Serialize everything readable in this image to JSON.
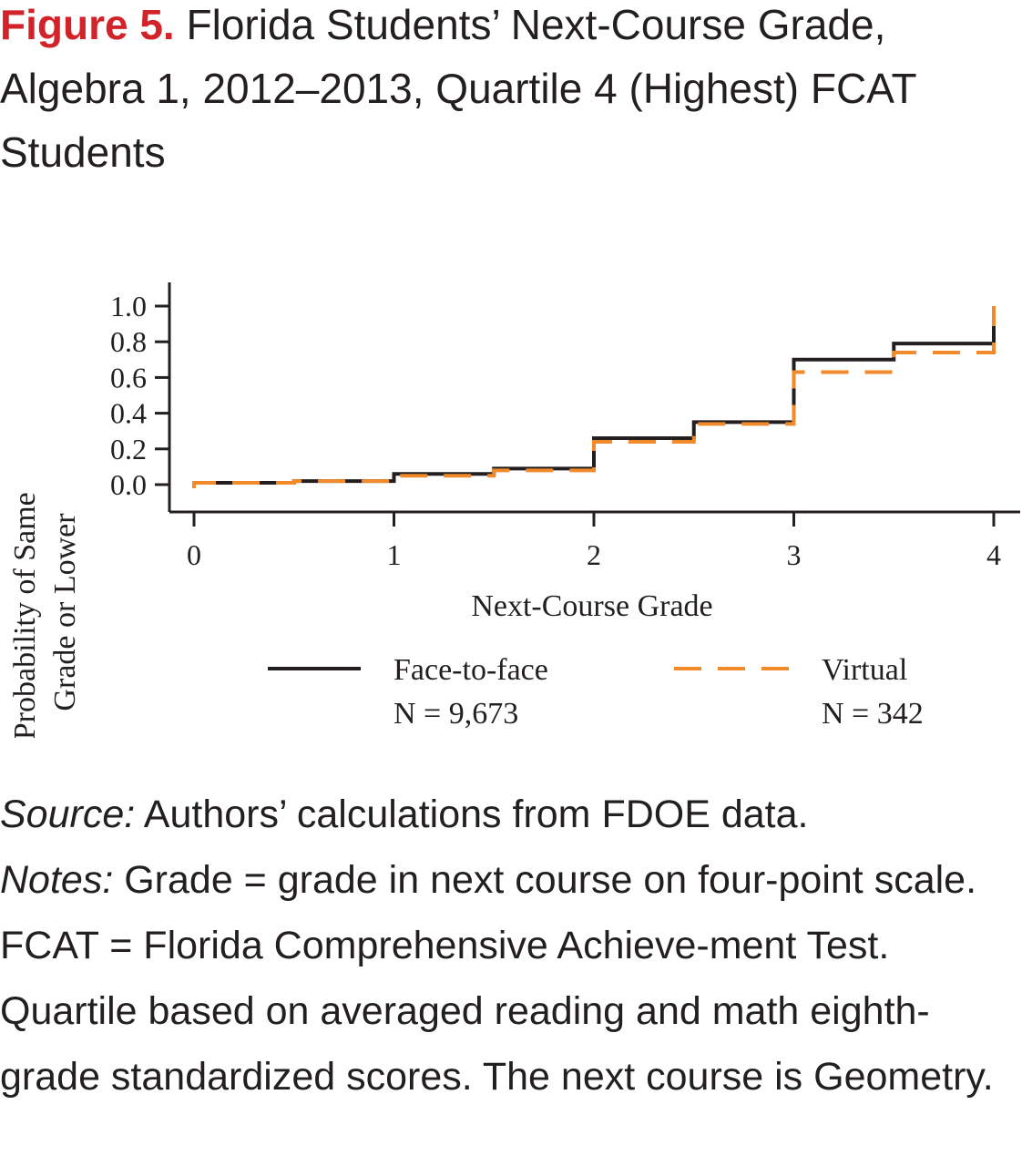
{
  "figure": {
    "label": "Figure 5.",
    "title": "Florida Students’ Next-Course Grade, Algebra 1, 2012–2013, Quartile 4 (Highest) FCAT Students"
  },
  "chart_data": {
    "type": "line",
    "step": true,
    "xlabel": "Next-Course Grade",
    "ylabel_lines": [
      "Probability of Same",
      "Grade or Lower"
    ],
    "xlim": [
      0,
      4
    ],
    "ylim": [
      0,
      1.0
    ],
    "x_ticks": [
      "0",
      "1",
      "2",
      "3",
      "4"
    ],
    "y_ticks": [
      "1.0",
      "0.8",
      "0.6",
      "0.4",
      "0.2",
      "0.0"
    ],
    "grid": false,
    "legend_position": "bottom",
    "series": [
      {
        "name": "Face-to-face",
        "n_label": "N = 9,673",
        "color": "#231f20",
        "dash": "solid",
        "x": [
          0,
          0.5,
          1.0,
          1.5,
          2.0,
          2.5,
          3.0,
          3.5,
          4.0
        ],
        "y": [
          0.01,
          0.02,
          0.06,
          0.09,
          0.26,
          0.35,
          0.7,
          0.79,
          1.0
        ]
      },
      {
        "name": "Virtual",
        "n_label": "N = 342",
        "color": "#f08a2b",
        "dash": "dashed",
        "x": [
          0,
          0.5,
          1.0,
          1.5,
          2.0,
          2.5,
          3.0,
          3.5,
          4.0
        ],
        "y": [
          0.01,
          0.02,
          0.05,
          0.08,
          0.24,
          0.34,
          0.63,
          0.74,
          1.0
        ]
      }
    ]
  },
  "notes": {
    "source_label": "Source:",
    "source_text": " Authors’ calculations from FDOE data.",
    "notes_label": "Notes:",
    "notes_text": " Grade = grade in next course on four-point scale. FCAT = Florida Comprehensive Achieve-ment Test. Quartile based on averaged reading and math eighth-grade standardized scores. The next course is Geometry."
  }
}
